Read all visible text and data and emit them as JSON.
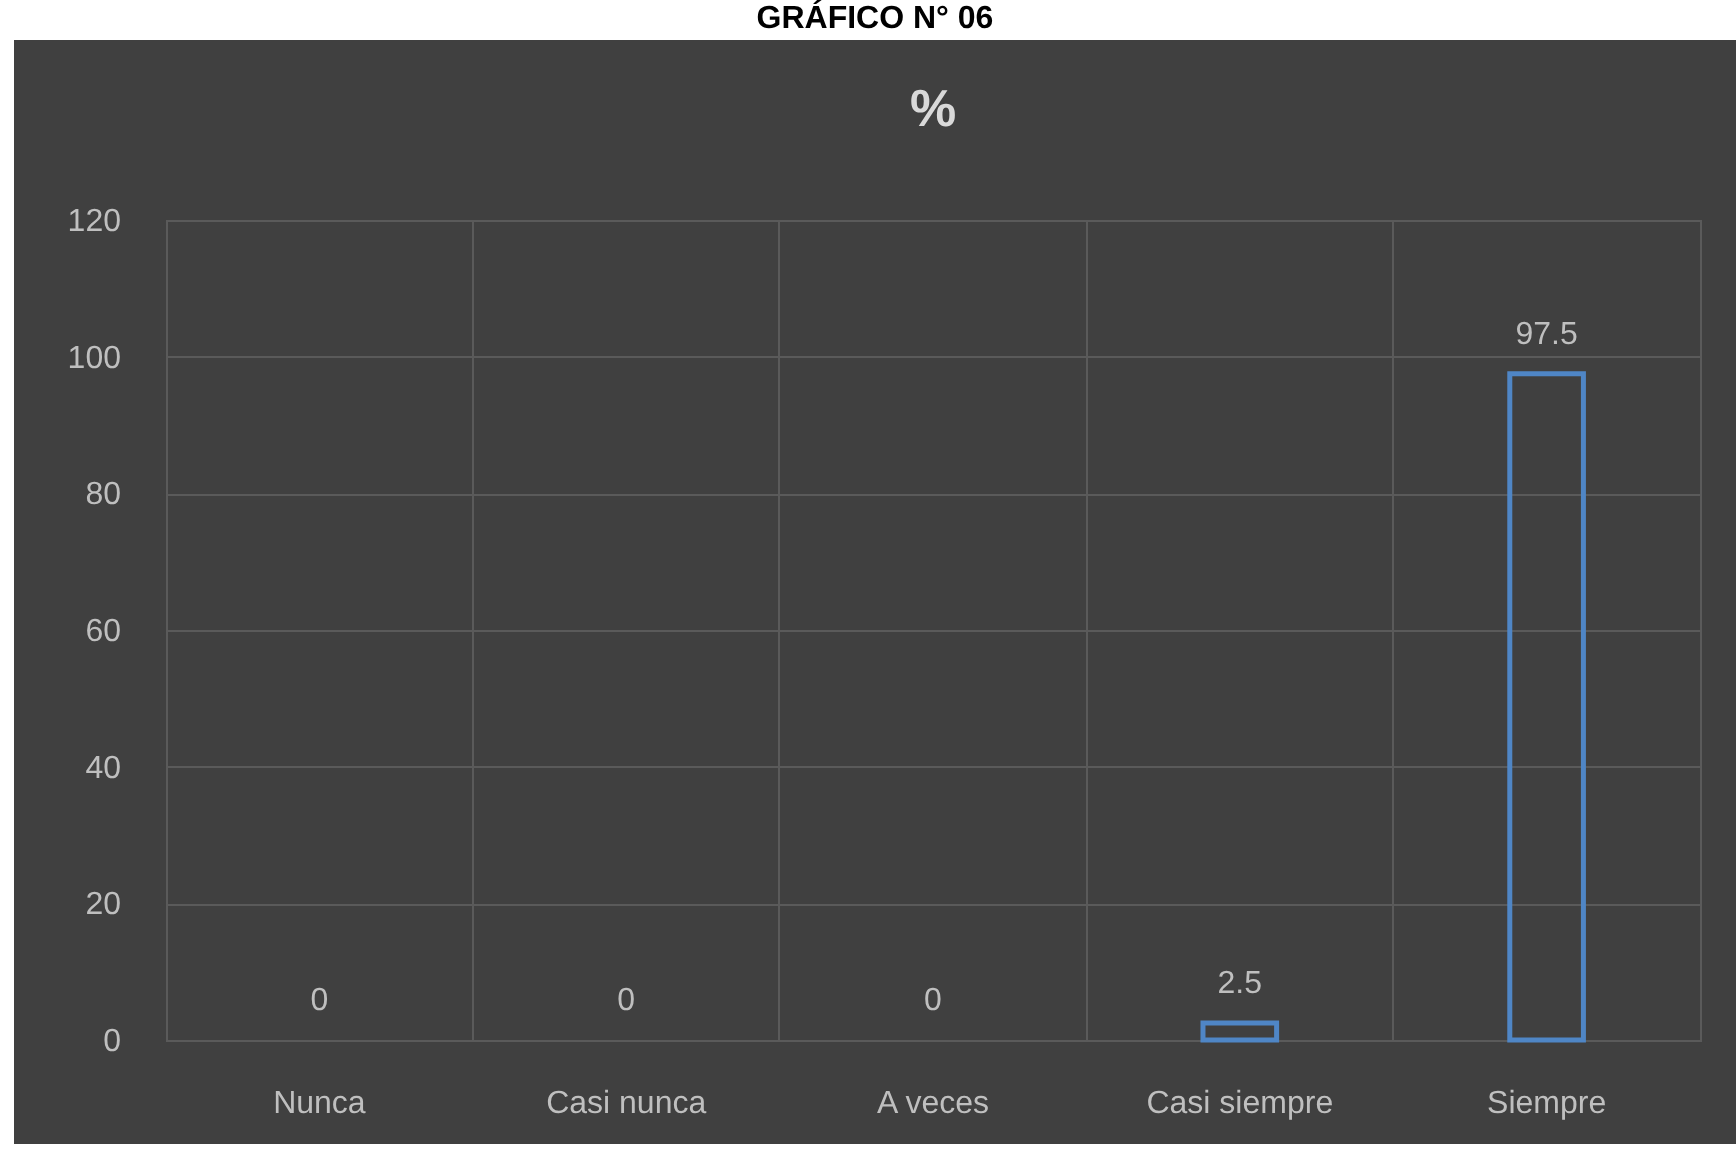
{
  "chart_data": {
    "type": "bar",
    "title": "GRÁFICO N° 06",
    "subtitle": "%",
    "categories": [
      "Nunca",
      "Casi nunca",
      "A veces",
      "Casi siempre",
      "Siempre"
    ],
    "values": [
      0,
      0,
      0,
      2.5,
      97.5
    ],
    "color": "#4f86c6",
    "ylim": [
      0,
      120
    ],
    "yticks": [
      0,
      20,
      40,
      60,
      80,
      100,
      120
    ],
    "grid": true,
    "data_labels": true
  }
}
